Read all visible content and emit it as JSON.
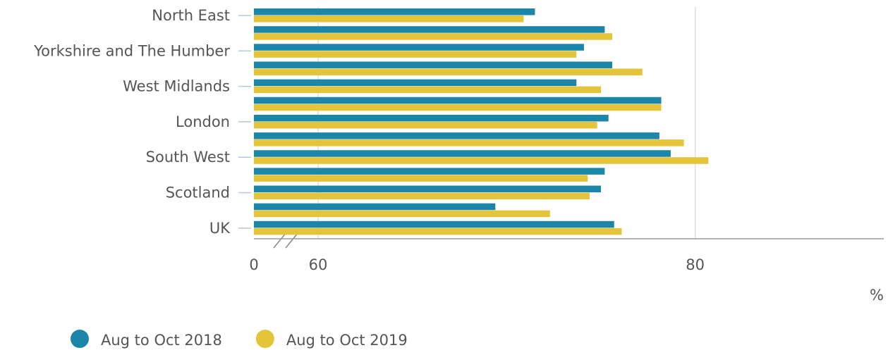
{
  "chart_data": {
    "type": "barh",
    "categories": [
      "North East",
      null,
      "Yorkshire and The Humber",
      null,
      "West Midlands",
      null,
      "London",
      null,
      "South West",
      null,
      "Scotland",
      null,
      "UK"
    ],
    "series": [
      {
        "name": "Aug to Oct 2018",
        "color": "#1c86a8",
        "values": [
          71.5,
          75.2,
          74.1,
          75.6,
          73.7,
          78.2,
          75.4,
          78.1,
          78.7,
          75.2,
          75.0,
          69.4,
          75.7
        ]
      },
      {
        "name": "Aug to Oct 2019",
        "color": "#e4c43a",
        "values": [
          70.9,
          75.6,
          73.7,
          77.2,
          75.0,
          78.2,
          74.8,
          79.4,
          80.7,
          74.3,
          74.4,
          72.3,
          76.1
        ]
      }
    ],
    "xlabel": "%",
    "xlim": [
      0,
      90
    ],
    "xbreak": [
      0,
      60
    ],
    "xticks": [
      0,
      60,
      80
    ],
    "grid": true
  }
}
